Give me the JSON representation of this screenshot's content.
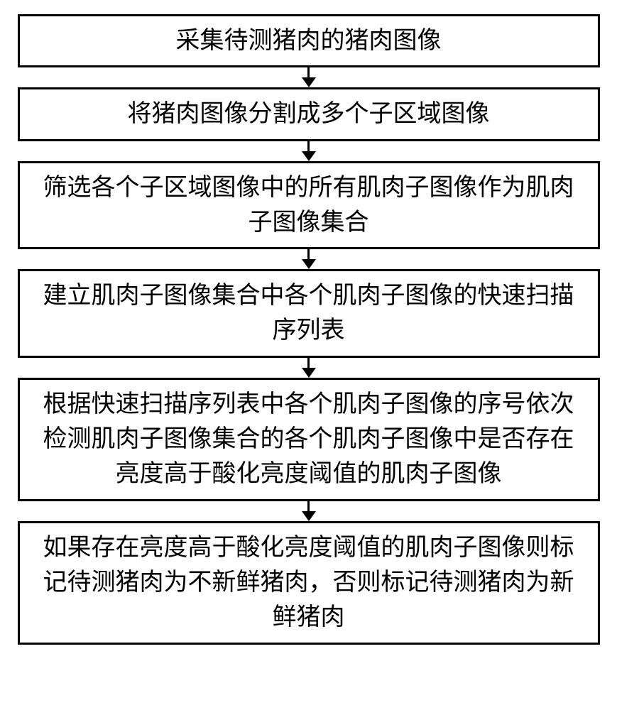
{
  "flowchart": {
    "type": "flowchart",
    "direction": "vertical",
    "box_border_color": "#000000",
    "box_border_width": 3,
    "box_background": "#ffffff",
    "text_color": "#000000",
    "font_family": "SimSun",
    "font_size_pt": 26,
    "arrow_color": "#000000",
    "steps": [
      {
        "text": "采集待测猪肉的猪肉图像"
      },
      {
        "text": "将猪肉图像分割成多个子区域图像"
      },
      {
        "text": "筛选各个子区域图像中的所有肌肉子图像作为肌肉子图像集合"
      },
      {
        "text": "建立肌肉子图像集合中各个肌肉子图像的快速扫描序列表"
      },
      {
        "text": "根据快速扫描序列表中各个肌肉子图像的序号依次检测肌肉子图像集合的各个肌肉子图像中是否存在亮度高于酸化亮度阈值的肌肉子图像"
      },
      {
        "text": "如果存在亮度高于酸化亮度阈值的肌肉子图像则标记待测猪肉为不新鲜猪肉，否则标记待测猪肉为新鲜猪肉"
      }
    ]
  }
}
